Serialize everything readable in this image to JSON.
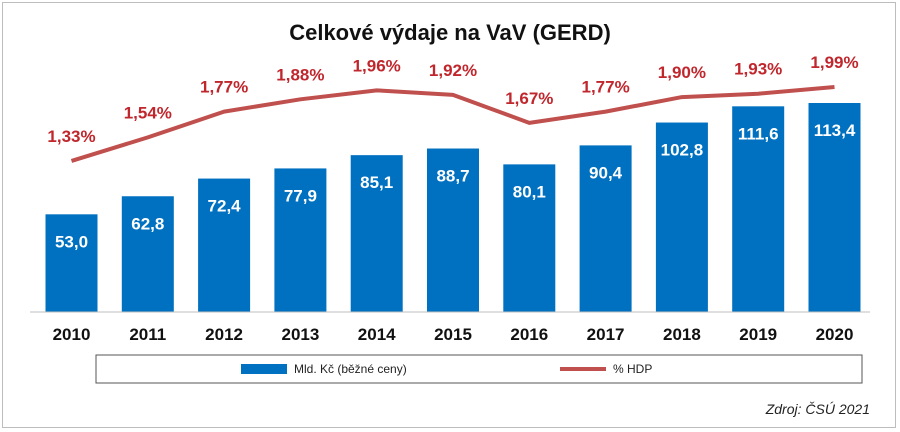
{
  "chart_data": {
    "type": "bar",
    "title": "Celkové výdaje na VaV (GERD)",
    "categories": [
      "2010",
      "2011",
      "2012",
      "2013",
      "2014",
      "2015",
      "2016",
      "2017",
      "2018",
      "2019",
      "2020"
    ],
    "series": [
      {
        "name": "Mld. Kč (běžné ceny)",
        "type": "bar",
        "values": [
          53.0,
          62.8,
          72.4,
          77.9,
          85.1,
          88.7,
          80.1,
          90.4,
          102.8,
          111.6,
          113.4
        ],
        "labels": [
          "53,0",
          "62,8",
          "72,4",
          "77,9",
          "85,1",
          "88,7",
          "80,1",
          "90,4",
          "102,8",
          "111,6",
          "113,4"
        ],
        "color": "#0070c0"
      },
      {
        "name": "% HDP",
        "type": "line",
        "values": [
          1.33,
          1.54,
          1.77,
          1.88,
          1.96,
          1.92,
          1.67,
          1.77,
          1.9,
          1.93,
          1.99
        ],
        "labels": [
          "1,33%",
          "1,54%",
          "1,77%",
          "1,88%",
          "1,96%",
          "1,92%",
          "1,67%",
          "1,77%",
          "1,90%",
          "1,93%",
          "1,99%"
        ],
        "color": "#c0504d"
      }
    ],
    "xlabel": "",
    "ylabel": "",
    "ylim_bars": [
      0,
      140
    ],
    "ylim_line": [
      0,
      2.2
    ],
    "grid": false,
    "legend": "bottom",
    "source": "Zdroj: ČSÚ 2021"
  }
}
